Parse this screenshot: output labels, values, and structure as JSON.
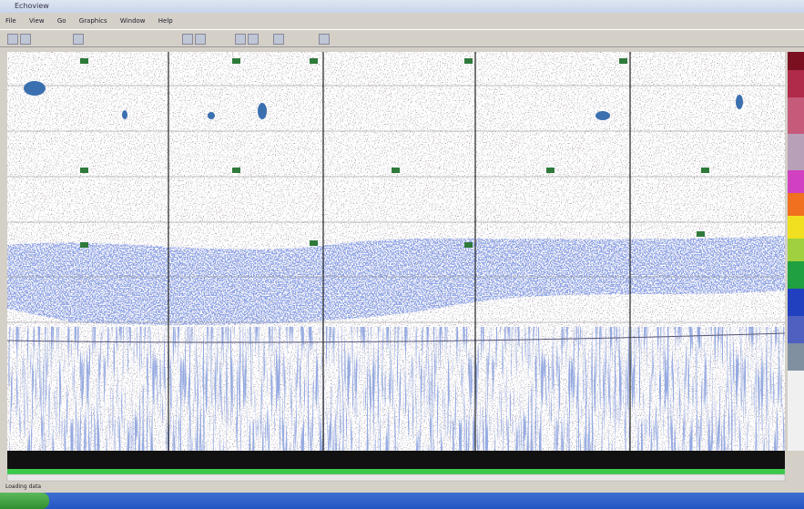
{
  "window": {
    "title": "Echoview"
  },
  "menu": [
    "File",
    "View",
    "Go",
    "Graphics",
    "Window",
    "Help"
  ],
  "status": {
    "text": "Loading data"
  }
}
